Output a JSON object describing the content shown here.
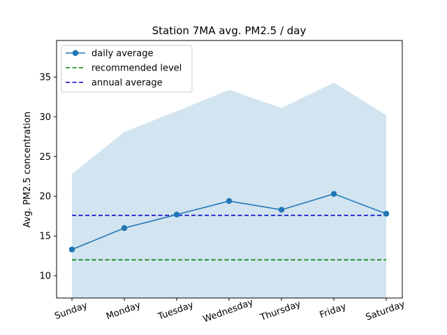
{
  "chart_data": {
    "type": "line",
    "title": "Station 7MA avg. PM2.5 / day",
    "xlabel": "",
    "ylabel": "Avg. PM2.5 concentration",
    "categories": [
      "Sunday",
      "Monday",
      "Tuesday",
      "Wednesday",
      "Thursday",
      "Friday",
      "Saturday"
    ],
    "ylim": [
      7.2,
      39.6
    ],
    "yticks": [
      10,
      15,
      20,
      25,
      30,
      35
    ],
    "series": [
      {
        "name": "daily average",
        "style": "solid-with-markers",
        "color": "#1f77b4",
        "values": [
          13.3,
          16.0,
          17.7,
          19.4,
          18.3,
          20.3,
          17.8
        ]
      },
      {
        "name": "recommended level",
        "style": "dashed",
        "color": "#008000",
        "values": [
          12.0,
          12.0,
          12.0,
          12.0,
          12.0,
          12.0,
          12.0
        ]
      },
      {
        "name": "annual average",
        "style": "dashed",
        "color": "#0000cc",
        "values": [
          17.6,
          17.6,
          17.6,
          17.6,
          17.6,
          17.6,
          17.6
        ]
      }
    ],
    "band": {
      "color": "#1f77b4",
      "opacity": 0.2,
      "upper": [
        22.8,
        28.1,
        30.7,
        33.4,
        31.1,
        34.3,
        30.2
      ],
      "lower": [
        7.2,
        7.2,
        7.2,
        7.2,
        7.2,
        7.2,
        7.2
      ]
    },
    "legend_position": "top-left",
    "grid": false
  }
}
